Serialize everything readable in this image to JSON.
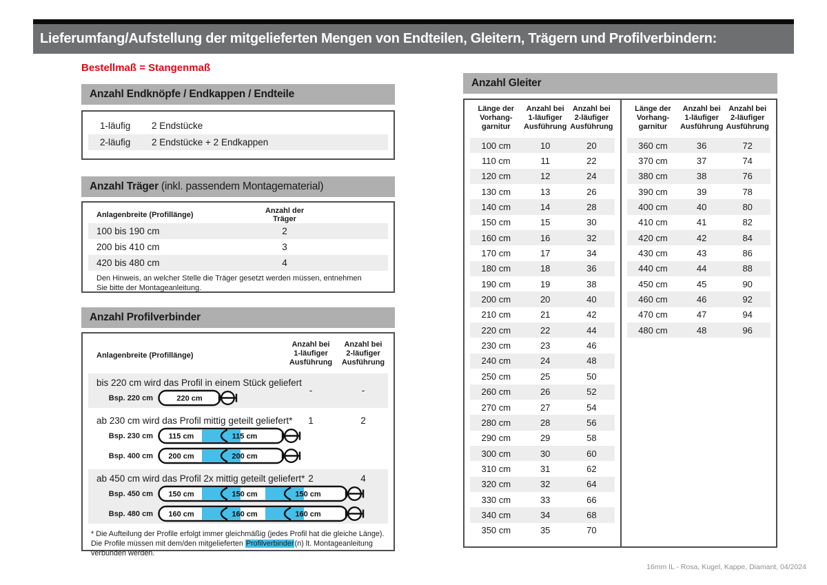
{
  "banner": {
    "title": "Lieferumfang/Aufstellung der mitgelieferten Mengen von Endteilen, Gleitern, Trägern und Profilverbindern:"
  },
  "subtitle": "Bestellmaß = Stangenmaß",
  "colors": {
    "accent_red": "#e30613",
    "connector_cyan": "#45bee9",
    "bar_gray": "#afafaf",
    "banner_gray": "#6e6f71",
    "stripe_gray": "#ededee"
  },
  "endparts": {
    "header": "Anzahl Endknöpfe / Endkappen / Endteile",
    "rows": [
      {
        "label": "1-läufig",
        "value": "2 Endstücke"
      },
      {
        "label": "2-läufig",
        "value": "2 Endstücke + 2 Endkappen"
      }
    ]
  },
  "traeger": {
    "header_bold": "Anzahl Träger",
    "header_rest": "(inkl. passendem Montagematerial)",
    "col1": "Anlagenbreite (Profillänge)",
    "col2": "Anzahl der Träger",
    "rows": [
      {
        "range": "100 bis 190 cm",
        "count": "2"
      },
      {
        "range": "200 bis 410 cm",
        "count": "3"
      },
      {
        "range": "420 bis 480 cm",
        "count": "4"
      }
    ],
    "note": "Den Hinweis, an welcher Stelle die Träger gesetzt werden müssen, entnehmen Sie bitte der Montageanleitung."
  },
  "profilverbinder": {
    "header": "Anzahl Profilverbinder",
    "col1": "Anlagenbreite (Profillänge)",
    "col2": "Anzahl bei\n1-läufiger\nAusführung",
    "col3": "Anzahl bei\n2-läufiger\nAusführung",
    "rows": [
      {
        "text": "bis 220 cm wird das Profil in einem Stück geliefert",
        "v1": "-",
        "v2": "-",
        "striped": true,
        "diagrams": [
          {
            "label": "Bsp. 220 cm",
            "segments": [
              "220 cm"
            ]
          }
        ]
      },
      {
        "text": "ab 230 cm wird das Profil mittig geteilt geliefert*",
        "v1": "1",
        "v2": "2",
        "striped": false,
        "diagrams": [
          {
            "label": "Bsp. 230 cm",
            "segments": [
              "115 cm",
              "115 cm"
            ]
          },
          {
            "label": "Bsp. 400 cm",
            "segments": [
              "200 cm",
              "200 cm"
            ]
          }
        ]
      },
      {
        "text": "ab 450 cm wird das Profil 2x mittig geteilt geliefert*",
        "v1": "2",
        "v2": "4",
        "striped": true,
        "diagrams": [
          {
            "label": "Bsp. 450 cm",
            "segments": [
              "150 cm",
              "150 cm",
              "150 cm"
            ]
          },
          {
            "label": "Bsp. 480 cm",
            "segments": [
              "160 cm",
              "160 cm",
              "160 cm"
            ]
          }
        ]
      }
    ],
    "footnote_pre": "* Die Aufteilung der Profile erfolgt immer gleichmäßig (jedes Profil hat die gleiche Länge). Die Profile müssen mit dem/den mitgelieferten ",
    "footnote_highlight": "Profilverbinder",
    "footnote_post": "(n) lt. Montageanleitung verbunden werden."
  },
  "gleiter": {
    "header": "Anzahl Gleiter",
    "col1": "Länge der\nVorhang-\ngarnitur",
    "col2": "Anzahl bei\n1-läufiger\nAusführung",
    "col3": "Anzahl bei\n2-läufiger\nAusführung",
    "table1": [
      [
        "100 cm",
        "10",
        "20"
      ],
      [
        "110 cm",
        "11",
        "22"
      ],
      [
        "120 cm",
        "12",
        "24"
      ],
      [
        "130 cm",
        "13",
        "26"
      ],
      [
        "140 cm",
        "14",
        "28"
      ],
      [
        "150 cm",
        "15",
        "30"
      ],
      [
        "160 cm",
        "16",
        "32"
      ],
      [
        "170 cm",
        "17",
        "34"
      ],
      [
        "180 cm",
        "18",
        "36"
      ],
      [
        "190 cm",
        "19",
        "38"
      ],
      [
        "200 cm",
        "20",
        "40"
      ],
      [
        "210 cm",
        "21",
        "42"
      ],
      [
        "220 cm",
        "22",
        "44"
      ],
      [
        "230 cm",
        "23",
        "46"
      ],
      [
        "240 cm",
        "24",
        "48"
      ],
      [
        "250 cm",
        "25",
        "50"
      ],
      [
        "260 cm",
        "26",
        "52"
      ],
      [
        "270 cm",
        "27",
        "54"
      ],
      [
        "280 cm",
        "28",
        "56"
      ],
      [
        "290 cm",
        "29",
        "58"
      ],
      [
        "300 cm",
        "30",
        "60"
      ],
      [
        "310 cm",
        "31",
        "62"
      ],
      [
        "320 cm",
        "32",
        "64"
      ],
      [
        "330 cm",
        "33",
        "66"
      ],
      [
        "340 cm",
        "34",
        "68"
      ],
      [
        "350 cm",
        "35",
        "70"
      ]
    ],
    "table2": [
      [
        "360 cm",
        "36",
        "72"
      ],
      [
        "370 cm",
        "37",
        "74"
      ],
      [
        "380 cm",
        "38",
        "76"
      ],
      [
        "390 cm",
        "39",
        "78"
      ],
      [
        "400 cm",
        "40",
        "80"
      ],
      [
        "410 cm",
        "41",
        "82"
      ],
      [
        "420 cm",
        "42",
        "84"
      ],
      [
        "430 cm",
        "43",
        "86"
      ],
      [
        "440 cm",
        "44",
        "88"
      ],
      [
        "450 cm",
        "45",
        "90"
      ],
      [
        "460 cm",
        "46",
        "92"
      ],
      [
        "470 cm",
        "47",
        "94"
      ],
      [
        "480 cm",
        "48",
        "96"
      ]
    ]
  },
  "footer": "16mm IL - Rosa, Kugel, Kappe, Diamant, 04/2024"
}
